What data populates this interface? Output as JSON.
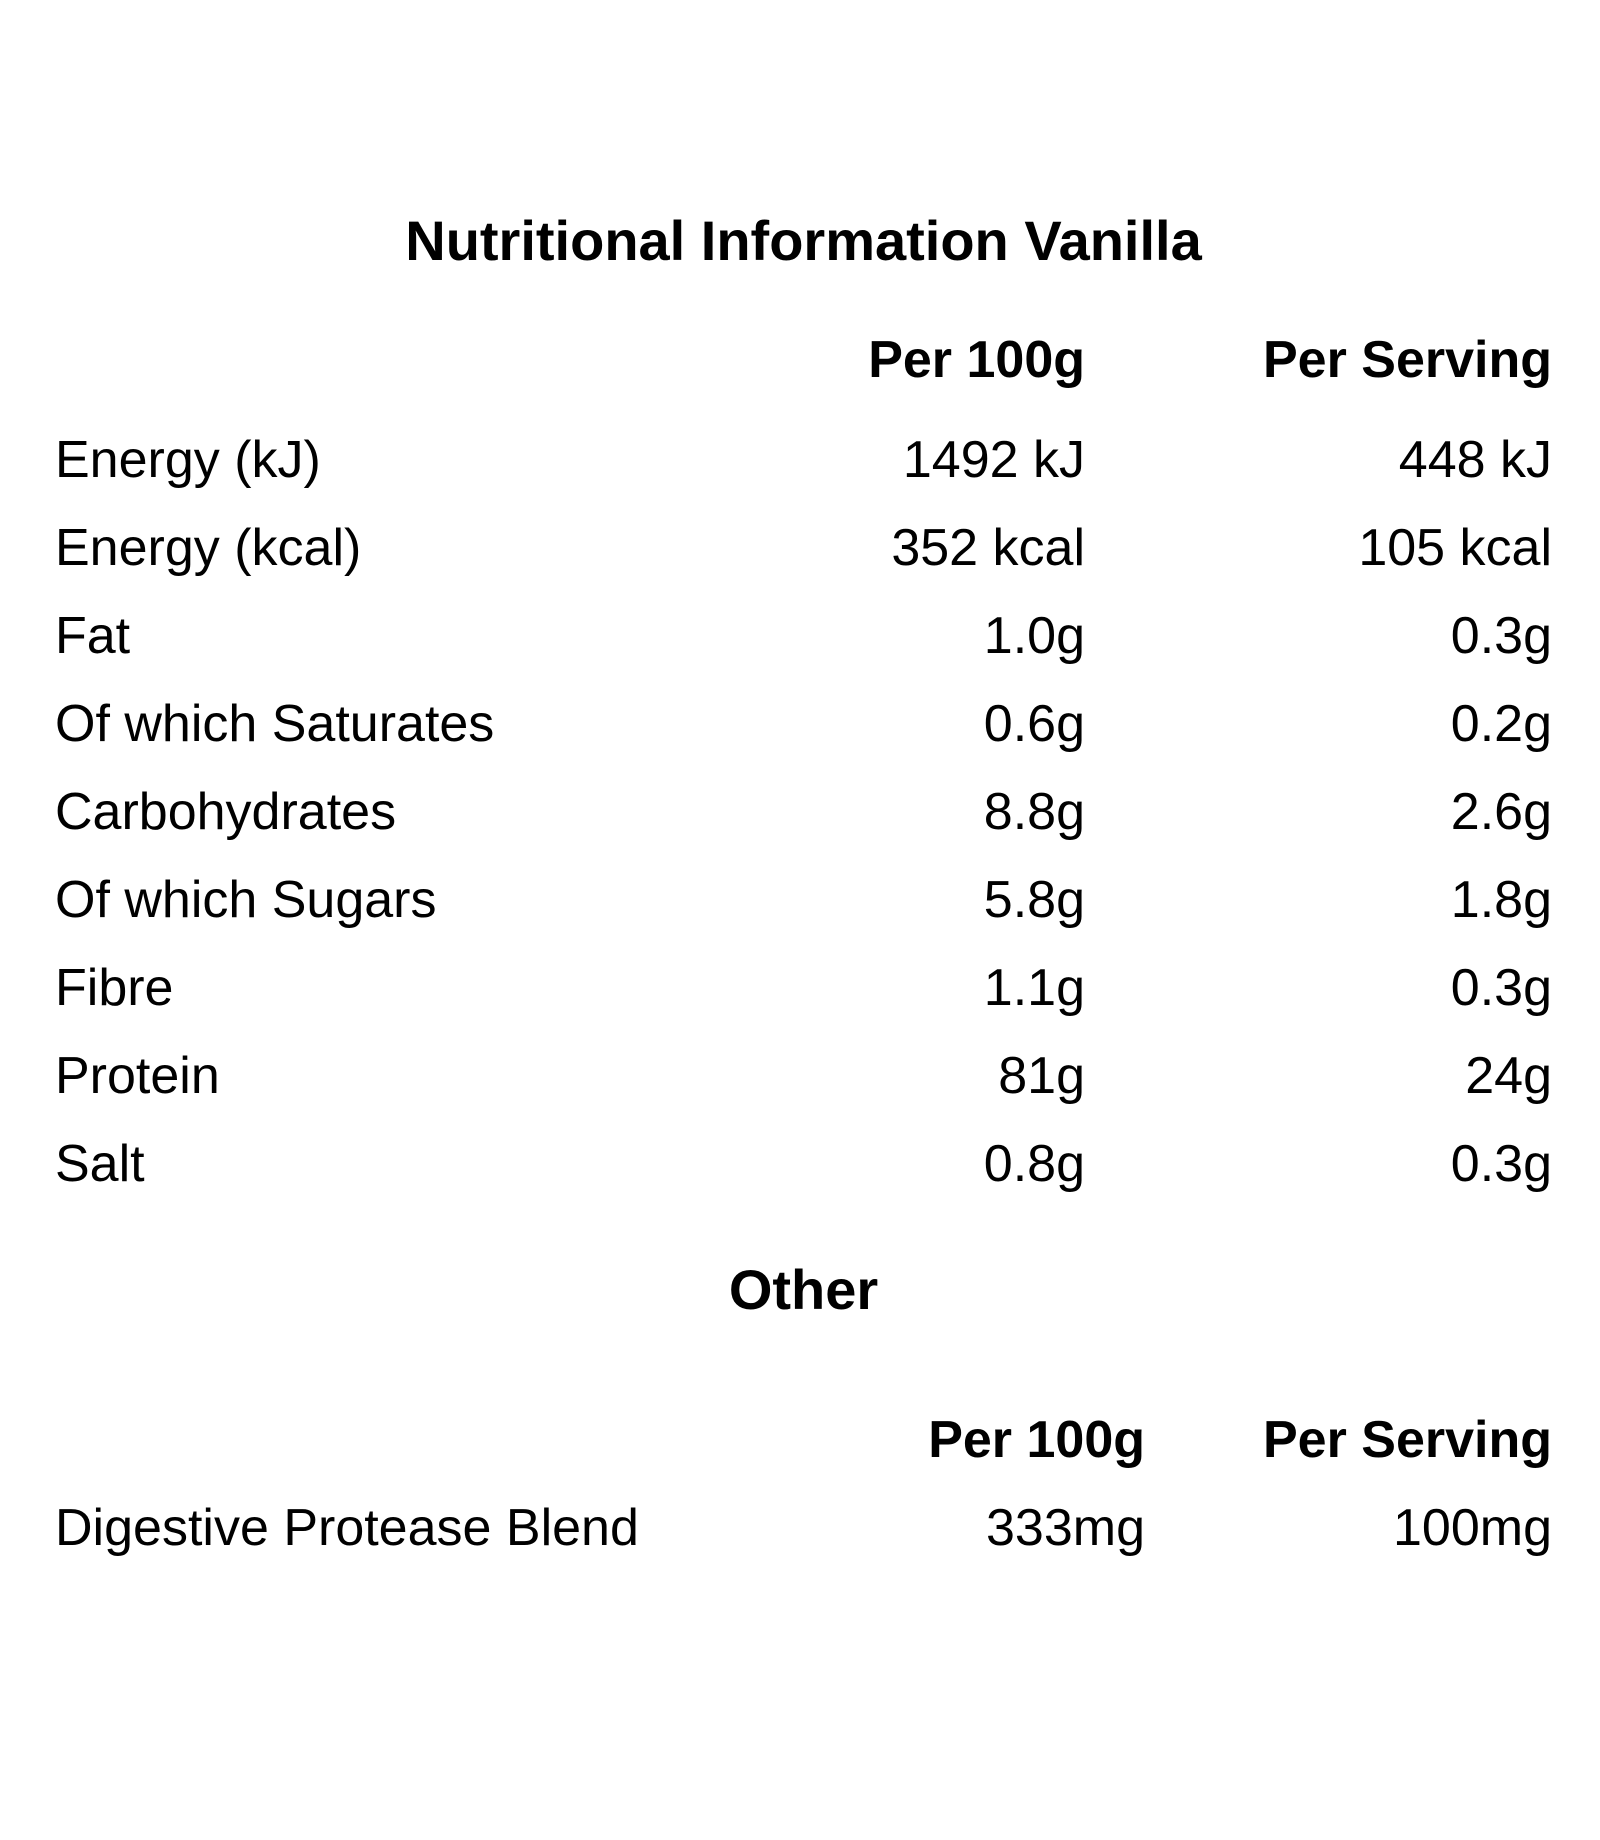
{
  "page": {
    "title": "Nutritional Information Vanilla",
    "background_color": "#ffffff",
    "text_color": "#000000"
  },
  "nutrition_table": {
    "col_per_100g": "Per 100g",
    "col_per_serving": "Per Serving",
    "rows": [
      {
        "label": "Energy (kJ)",
        "per_100g": "1492 kJ",
        "per_serving": "448 kJ"
      },
      {
        "label": "Energy (kcal)",
        "per_100g": "352 kcal",
        "per_serving": "105 kcal"
      },
      {
        "label": "Fat",
        "per_100g": "1.0g",
        "per_serving": "0.3g"
      },
      {
        "label": "Of which Saturates",
        "per_100g": "0.6g",
        "per_serving": "0.2g"
      },
      {
        "label": "Carbohydrates",
        "per_100g": "8.8g",
        "per_serving": "2.6g"
      },
      {
        "label": "Of which Sugars",
        "per_100g": "5.8g",
        "per_serving": "1.8g"
      },
      {
        "label": "Fibre",
        "per_100g": "1.1g",
        "per_serving": "0.3g"
      },
      {
        "label": "Protein",
        "per_100g": "81g",
        "per_serving": "24g"
      },
      {
        "label": "Salt",
        "per_100g": "0.8g",
        "per_serving": "0.3g"
      }
    ]
  },
  "other_section": {
    "heading": "Other",
    "col_per_100g": "Per 100g",
    "col_per_serving": "Per Serving",
    "rows": [
      {
        "label": "Digestive Protease Blend",
        "per_100g": "333mg",
        "per_serving": "100mg"
      }
    ]
  }
}
